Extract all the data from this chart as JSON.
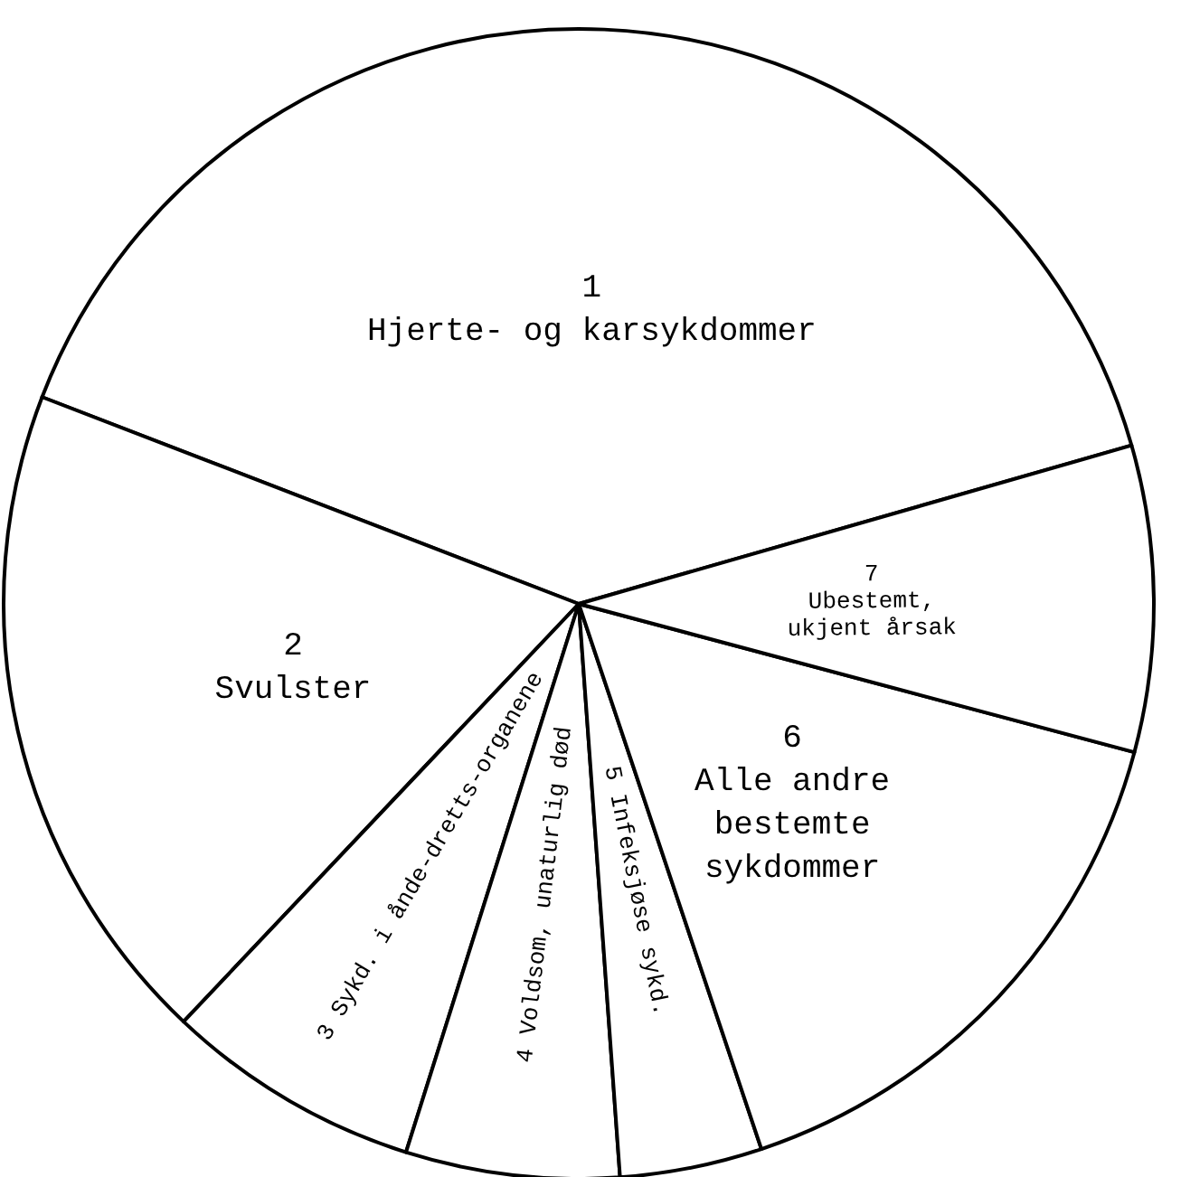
{
  "chart_data": {
    "type": "pie",
    "categories": [
      "1\nHjerte- og karsykdommer",
      "2\nSvulster",
      "3 Sykd. i ånde-dretts-organene",
      "4 Voldsom, unaturlig død",
      "5 Infeksjøse sykd.",
      "6\nAlle andre\nbestemte\nsykdommer",
      "7\nUbestemt,\nukjent årsak"
    ],
    "values": [
      39.7,
      18.8,
      7.2,
      6.0,
      4.0,
      15.7,
      8.6
    ],
    "colors": [
      "#ffffff",
      "#ffffff",
      "#ffffff",
      "#ffffff",
      "#ffffff",
      "#ffffff",
      "#ffffff"
    ]
  }
}
